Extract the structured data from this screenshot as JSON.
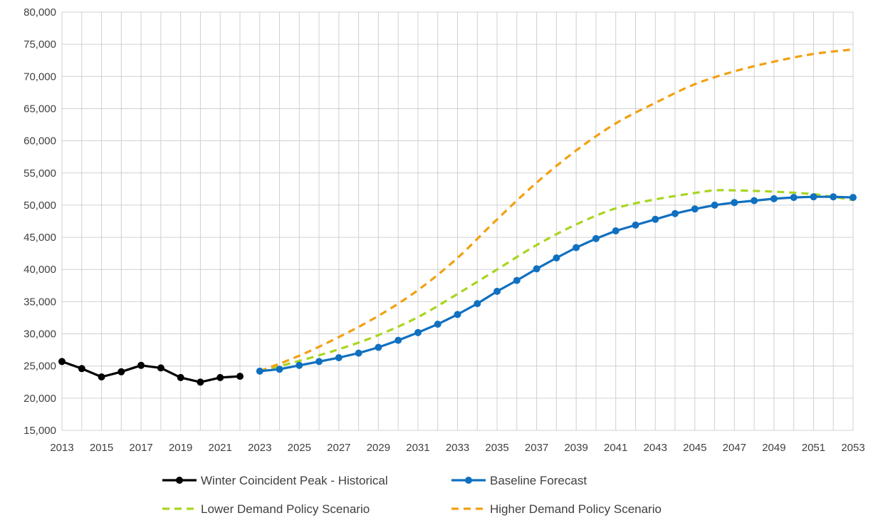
{
  "chart_data": {
    "type": "line",
    "title": "",
    "xlabel": "",
    "ylabel": "",
    "xlim": [
      2013,
      2053
    ],
    "ylim": [
      15000,
      80000
    ],
    "ytick_step": 5000,
    "xtick_labels": [
      "2013",
      "2015",
      "2017",
      "2019",
      "2021",
      "2023",
      "2025",
      "2027",
      "2029",
      "2031",
      "2033",
      "2035",
      "2037",
      "2039",
      "2041",
      "2043",
      "2045",
      "2047",
      "2049",
      "2051",
      "2053"
    ],
    "ytick_labels": [
      "15,000",
      "20,000",
      "25,000",
      "30,000",
      "35,000",
      "40,000",
      "45,000",
      "50,000",
      "55,000",
      "60,000",
      "65,000",
      "70,000",
      "75,000",
      "80,000"
    ],
    "grid": true,
    "legend_position": "bottom",
    "series": [
      {
        "name": "Winter Coincident Peak - Historical",
        "color": "#000000",
        "style": "solid-markers",
        "x": [
          2013,
          2014,
          2015,
          2016,
          2017,
          2018,
          2019,
          2020,
          2021,
          2022
        ],
        "y": [
          25700,
          24600,
          23300,
          24100,
          25100,
          24700,
          23200,
          22500,
          23200,
          23400
        ]
      },
      {
        "name": "Baseline Forecast",
        "color": "#1070C0",
        "style": "solid-markers",
        "x": [
          2023,
          2024,
          2025,
          2026,
          2027,
          2028,
          2029,
          2030,
          2031,
          2032,
          2033,
          2034,
          2035,
          2036,
          2037,
          2038,
          2039,
          2040,
          2041,
          2042,
          2043,
          2044,
          2045,
          2046,
          2047,
          2048,
          2049,
          2050,
          2051,
          2052,
          2053
        ],
        "y": [
          24200,
          24500,
          25100,
          25700,
          26300,
          27000,
          27900,
          29000,
          30200,
          31500,
          33000,
          34700,
          36600,
          38300,
          40100,
          41800,
          43400,
          44800,
          46000,
          46900,
          47800,
          48700,
          49400,
          50000,
          50400,
          50700,
          51000,
          51200,
          51300,
          51300,
          51200
        ]
      },
      {
        "name": "Lower Demand Policy Scenario",
        "color": "#A8D520",
        "style": "dashed",
        "x": [
          2023,
          2025,
          2027,
          2029,
          2031,
          2033,
          2035,
          2037,
          2039,
          2041,
          2043,
          2045,
          2046,
          2047,
          2049,
          2051,
          2053
        ],
        "y": [
          24200,
          25800,
          27600,
          29800,
          32600,
          36200,
          40000,
          43800,
          47000,
          49500,
          50900,
          51900,
          52300,
          52300,
          52100,
          51700,
          50800
        ]
      },
      {
        "name": "Higher Demand Policy Scenario",
        "color": "#F2A012",
        "style": "dashed",
        "x": [
          2023,
          2025,
          2027,
          2029,
          2031,
          2033,
          2035,
          2037,
          2039,
          2041,
          2043,
          2045,
          2047,
          2049,
          2051,
          2053
        ],
        "y": [
          24200,
          26600,
          29500,
          32800,
          36800,
          41800,
          47800,
          53500,
          58500,
          62700,
          65900,
          68800,
          70800,
          72300,
          73500,
          74200
        ]
      }
    ]
  }
}
